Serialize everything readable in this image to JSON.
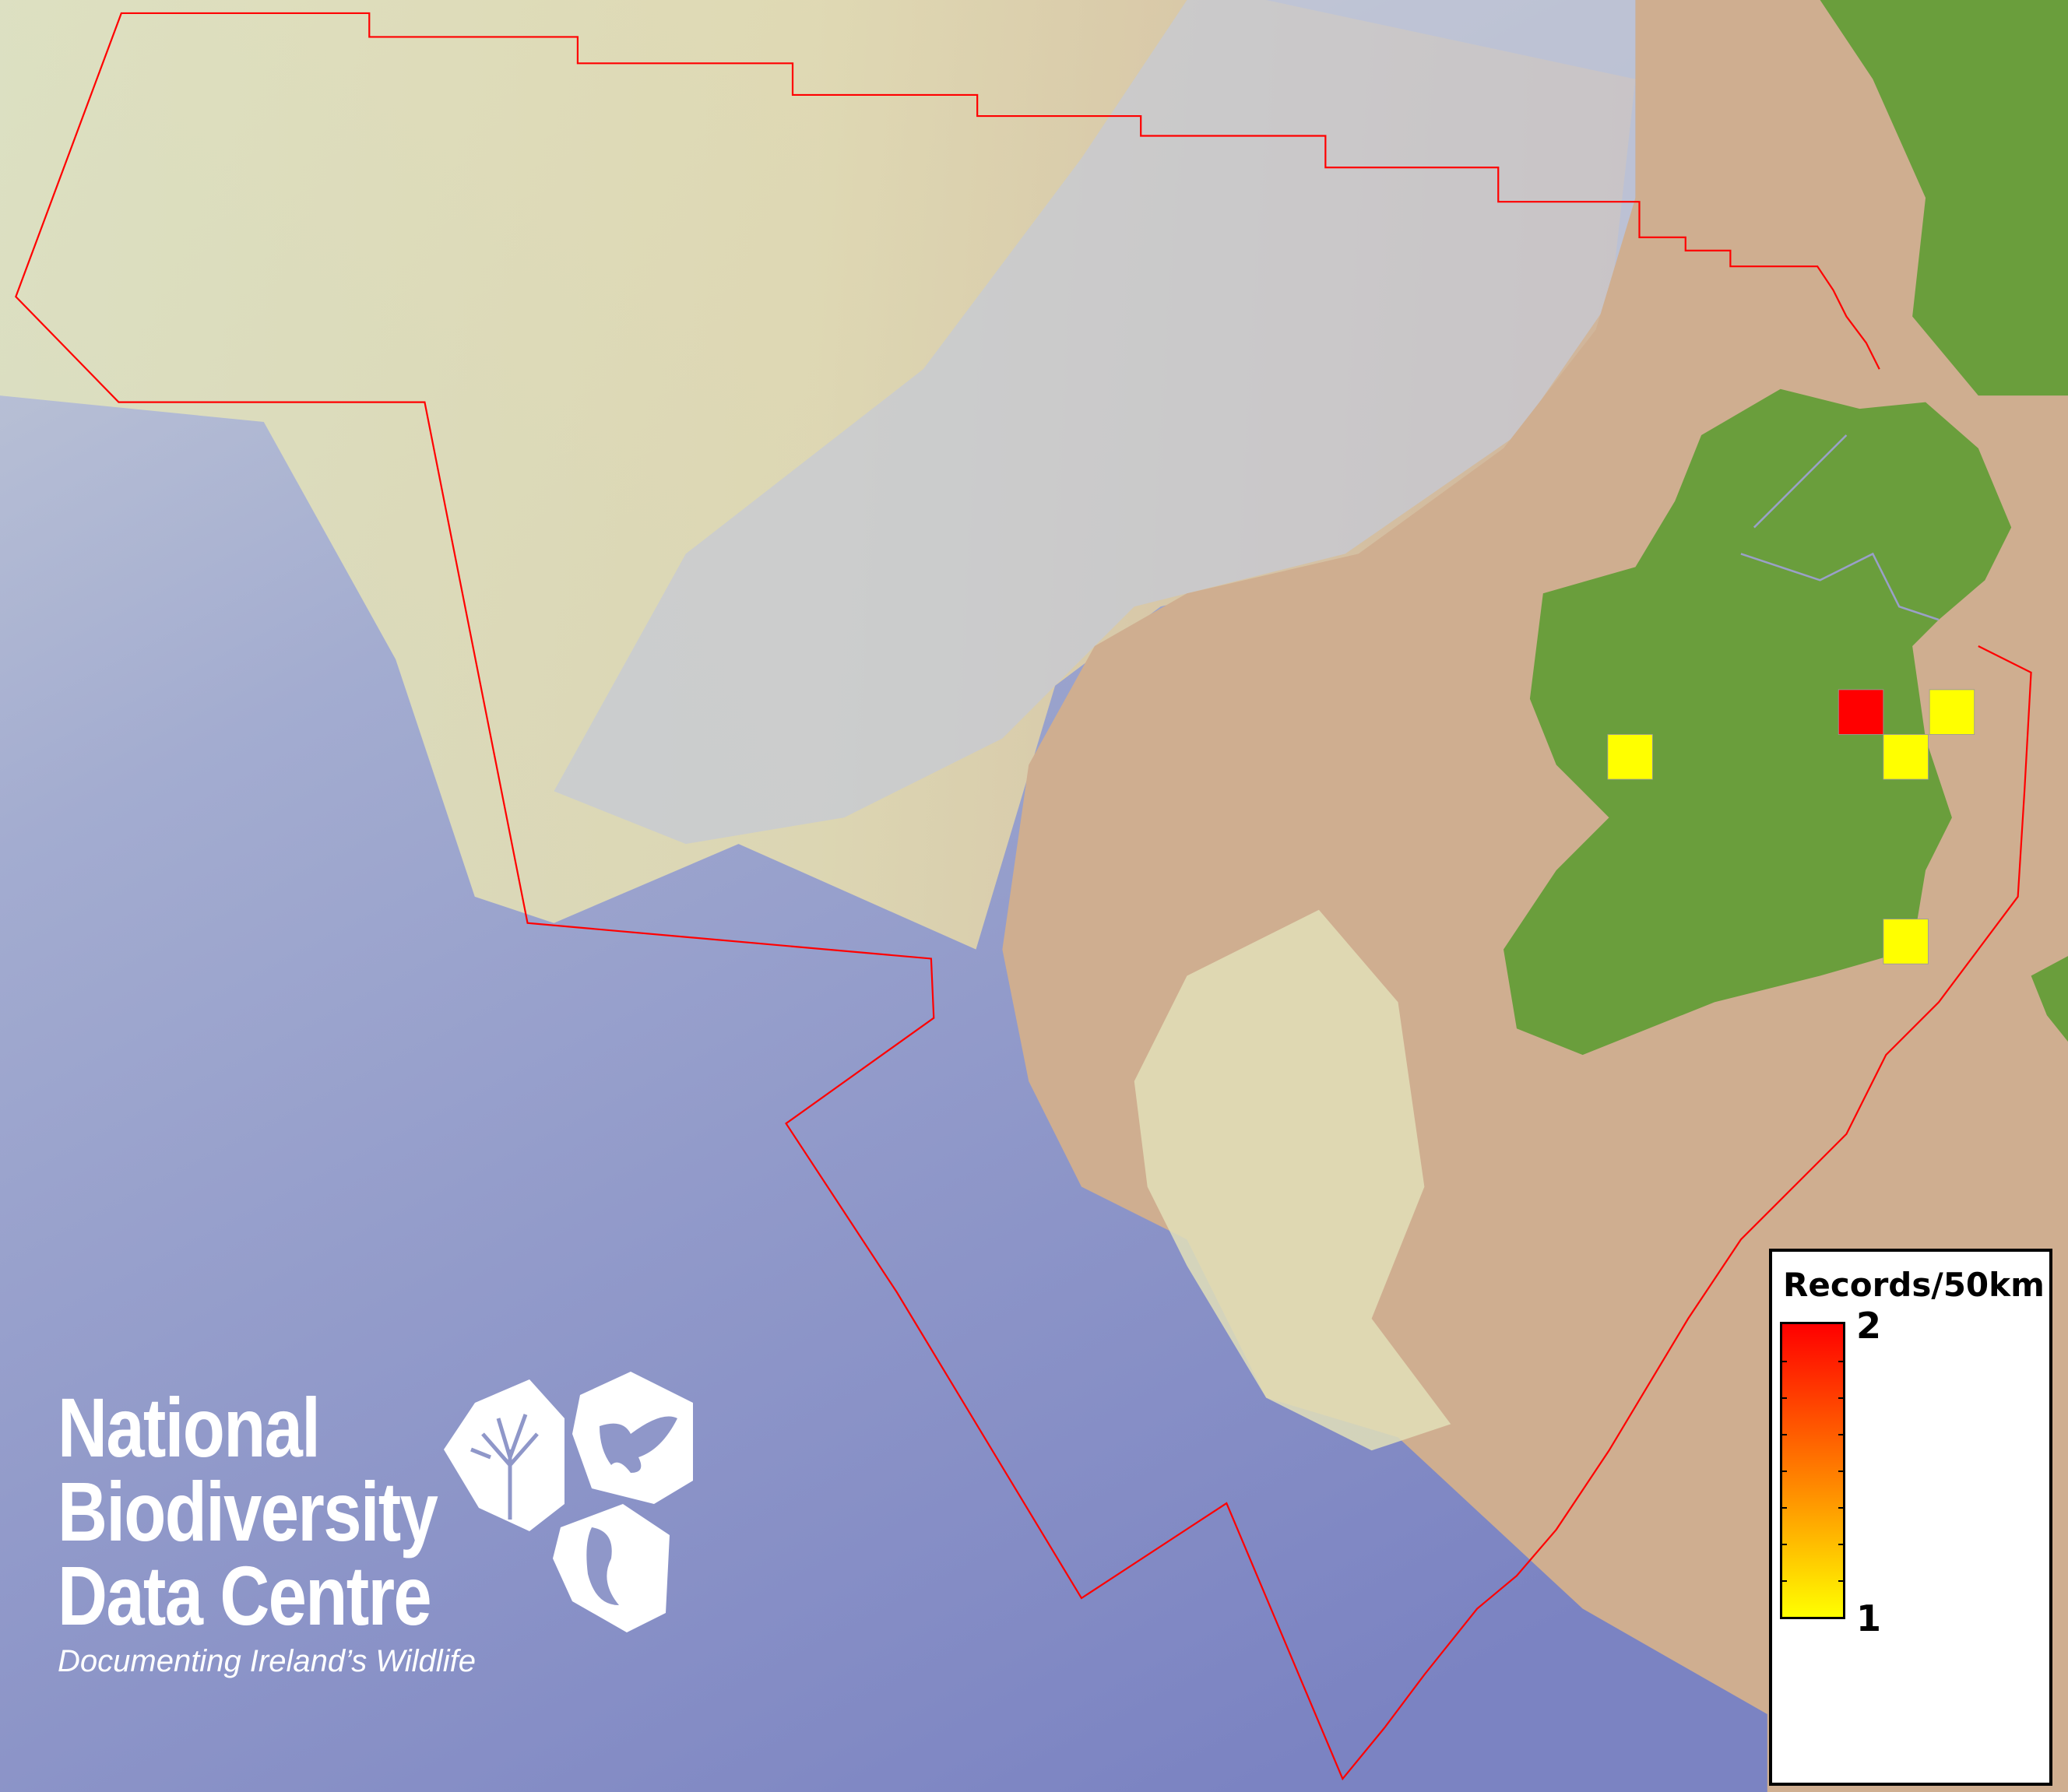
{
  "map": {
    "colors": {
      "deep_sea": "#7e87c4",
      "shelf": "#d8dcb8",
      "land_sea_slope": "#c9d4c0",
      "continental_shelf_tan": "#cda88a",
      "land": "#6a9e3c",
      "boundary": "#ff0000",
      "cell_low": "#ffff00",
      "cell_high": "#ff0000"
    },
    "cells": [
      {
        "records": 2
      },
      {
        "records": 1
      },
      {
        "records": 1
      },
      {
        "records": 1
      },
      {
        "records": 1
      }
    ]
  },
  "legend": {
    "title": "Records/50km",
    "max_label": "2",
    "min_label": "1",
    "gradient": [
      "#ff0000",
      "#ff8800",
      "#ffff00"
    ]
  },
  "logo": {
    "line1": "National",
    "line2": "Biodiversity",
    "line3": "Data Centre",
    "tagline": "Documenting Ireland’s Wildlife",
    "icons": [
      "tree-icon",
      "butterfly-icon",
      "seahorse-icon"
    ]
  }
}
